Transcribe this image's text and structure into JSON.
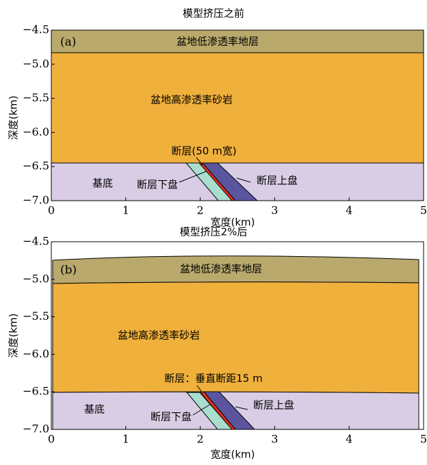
{
  "panels": [
    {
      "title": "模型挤压之前",
      "label": "(a)",
      "xlabel": "宽度(km)",
      "ylabel": "深度(km)",
      "xlim": [
        0,
        5
      ],
      "ylim": [
        -4.5,
        -7.0
      ],
      "xticks": [
        0,
        1,
        2,
        3,
        4,
        5
      ],
      "yticks": [
        {
          "value": -4.5,
          "label": "−4.5"
        },
        {
          "value": -5.0,
          "label": "−5.0"
        },
        {
          "value": -5.5,
          "label": "−5.5"
        },
        {
          "value": -6.0,
          "label": "−6.0"
        },
        {
          "value": -6.5,
          "label": "−6.5"
        },
        {
          "value": -7.0,
          "label": "−7.0"
        }
      ],
      "regions": {
        "top_layer": "盆地低渗透率地层",
        "sandstone": "盆地高渗透率砂岩",
        "basement": "基底",
        "footwall": "断层下盘",
        "hanging_wall": "断层上盘",
        "fault": "断层(50 m宽)"
      }
    },
    {
      "title": "模型挤压2%后",
      "label": "(b)",
      "xlabel": "宽度(km)",
      "ylabel": "深度(km)",
      "xlim": [
        0,
        5
      ],
      "ylim": [
        -4.5,
        -7.0
      ],
      "xticks": [
        0,
        1,
        2,
        3,
        4,
        5
      ],
      "yticks": [
        {
          "value": -4.5,
          "label": "−4.5"
        },
        {
          "value": -5.0,
          "label": "−5.0"
        },
        {
          "value": -5.5,
          "label": "−5.5"
        },
        {
          "value": -6.0,
          "label": "−6.0"
        },
        {
          "value": -6.5,
          "label": "−6.5"
        },
        {
          "value": -7.0,
          "label": "−7.0"
        }
      ],
      "regions": {
        "top_layer": "盆地低渗透率地层",
        "sandstone": "盆地高渗透率砂岩",
        "basement": "基底",
        "footwall": "断层下盘",
        "hanging_wall": "断层上盘",
        "fault": "断层：垂直断距15 m"
      }
    }
  ]
}
